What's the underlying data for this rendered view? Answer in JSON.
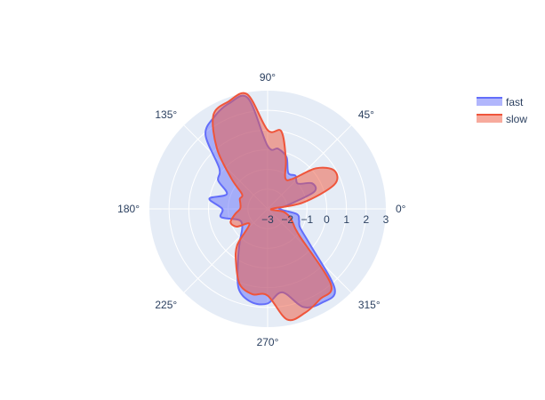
{
  "chart_data": {
    "type": "area",
    "subtype": "polar",
    "title": "",
    "radial_axis": {
      "range": [
        -3,
        3
      ],
      "ticks": [
        -3,
        -2,
        -1,
        0,
        1,
        2,
        3
      ],
      "tick_labels": [
        "−3",
        "−2",
        "−1",
        "0",
        "1",
        "2",
        "3"
      ],
      "angle_deg": 0
    },
    "angular_axis": {
      "ticks_deg": [
        0,
        45,
        90,
        135,
        180,
        225,
        270,
        315
      ],
      "tick_labels": [
        "0°",
        "45°",
        "90°",
        "135°",
        "180°",
        "225°",
        "270°",
        "315°"
      ]
    },
    "grid": true,
    "legend_position": "top-right",
    "series": [
      {
        "name": "fast",
        "color": "#636efa",
        "theta": [
          0,
          10,
          20,
          30,
          40,
          50,
          60,
          70,
          80,
          90,
          100,
          110,
          120,
          130,
          140,
          150,
          160,
          170,
          180,
          190,
          200,
          210,
          220,
          230,
          240,
          250,
          260,
          270,
          280,
          290,
          300,
          310,
          320,
          330,
          340,
          350
        ],
        "r": [
          -2.4,
          -2.0,
          -0.5,
          -0.4,
          -1.0,
          -0.8,
          -0.9,
          -0.2,
          0.1,
          0.2,
          2.7,
          2.7,
          2.4,
          1.9,
          0.2,
          -0.1,
          -0.8,
          0.0,
          -0.7,
          -0.6,
          -1.4,
          -1.5,
          -1.3,
          -0.8,
          0.0,
          1.3,
          1.8,
          1.8,
          1.3,
          2.3,
          2.5,
          2.3,
          -0.2,
          -1.1,
          -1.3,
          -1.5
        ]
      },
      {
        "name": "slow",
        "color": "#ef553b",
        "theta": [
          0,
          10,
          20,
          30,
          40,
          50,
          60,
          70,
          80,
          90,
          100,
          110,
          120,
          130,
          140,
          150,
          160,
          170,
          180,
          190,
          200,
          210,
          220,
          230,
          240,
          250,
          260,
          270,
          280,
          290,
          300,
          310,
          320,
          330,
          340,
          350
        ],
        "r": [
          -2.8,
          -1.2,
          0.6,
          0.9,
          0.2,
          -1.0,
          -1.2,
          -0.3,
          1.0,
          1.0,
          2.9,
          2.8,
          2.5,
          1.0,
          -0.6,
          -1.5,
          -1.5,
          -1.6,
          -1.6,
          -1.3,
          -1.0,
          -1.2,
          -1.8,
          -0.6,
          0.2,
          1.1,
          1.4,
          1.4,
          2.7,
          2.6,
          2.3,
          2.0,
          -0.9,
          -1.5,
          -1.8,
          -2.2
        ]
      }
    ]
  }
}
